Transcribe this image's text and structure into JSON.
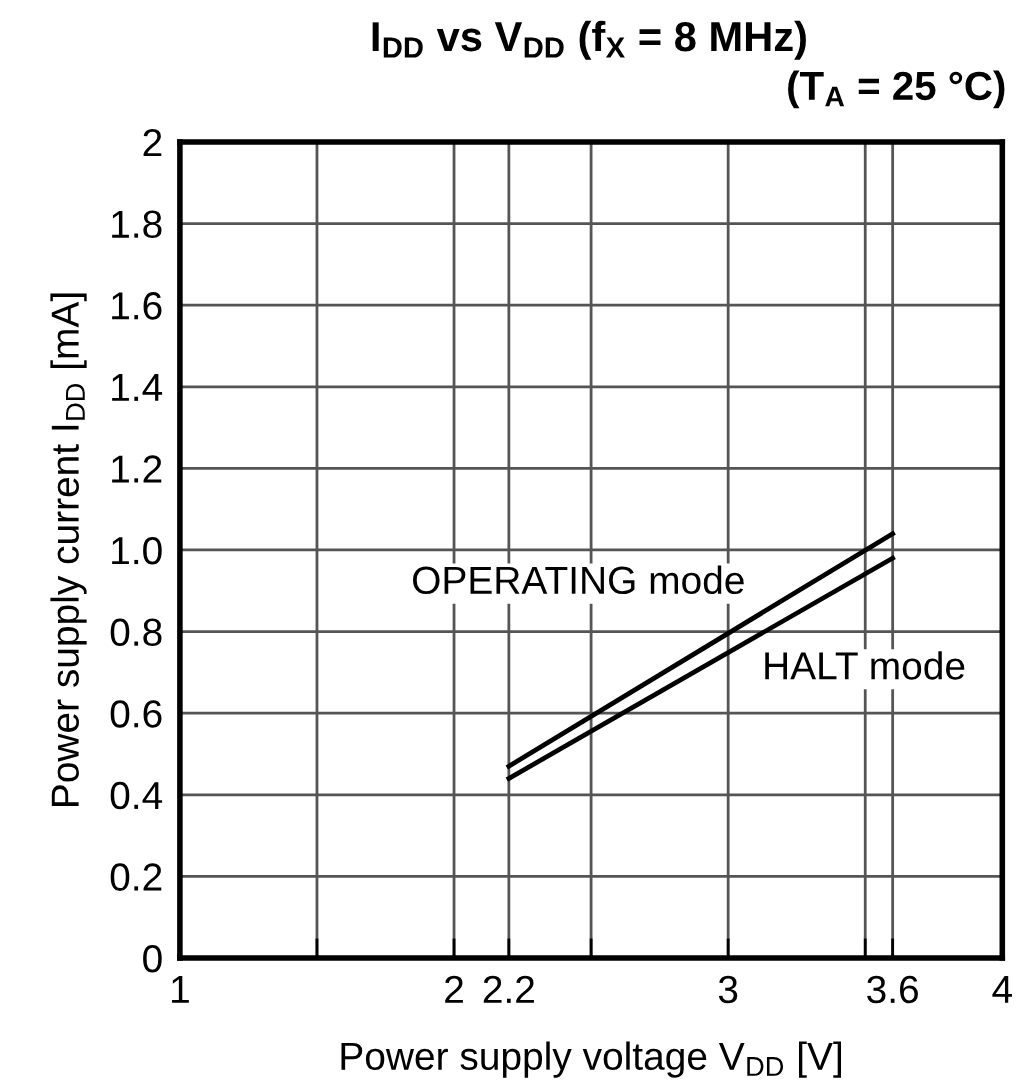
{
  "chart_data": {
    "type": "line",
    "title": "I$_{DD}$ vs V$_{DD}$ (f$_{X}$ = 8 MHz)",
    "subtitle": "(T$_{A}$ = 25 °C)",
    "xlabel": "Power supply voltage V$_{DD}$ [V]",
    "ylabel": "Power supply current I$_{DD}$ [mA]",
    "x": [
      2.2,
      3.6
    ],
    "series": [
      {
        "name": "OPERATING mode",
        "color": "#000000",
        "values": [
          0.47,
          1.04
        ]
      },
      {
        "name": "HALT mode",
        "color": "#000000",
        "values": [
          0.44,
          0.98
        ]
      }
    ],
    "xlim": [
      1,
      4
    ],
    "xticks": [
      1,
      {
        "value": 1.5,
        "label": null
      },
      2,
      2.2,
      {
        "value": 2.5,
        "label": null
      },
      3,
      {
        "value": 3.5,
        "label": null
      },
      3.6,
      4
    ],
    "ylim": [
      0,
      2
    ],
    "yticks": [
      0,
      0.2,
      0.4,
      0.6,
      0.8,
      {
        "value": 1,
        "label": "1.0"
      },
      1.2,
      1.4,
      1.6,
      1.8,
      2
    ],
    "grid": true,
    "legend": false,
    "marker": "none",
    "line_style": "solid"
  }
}
